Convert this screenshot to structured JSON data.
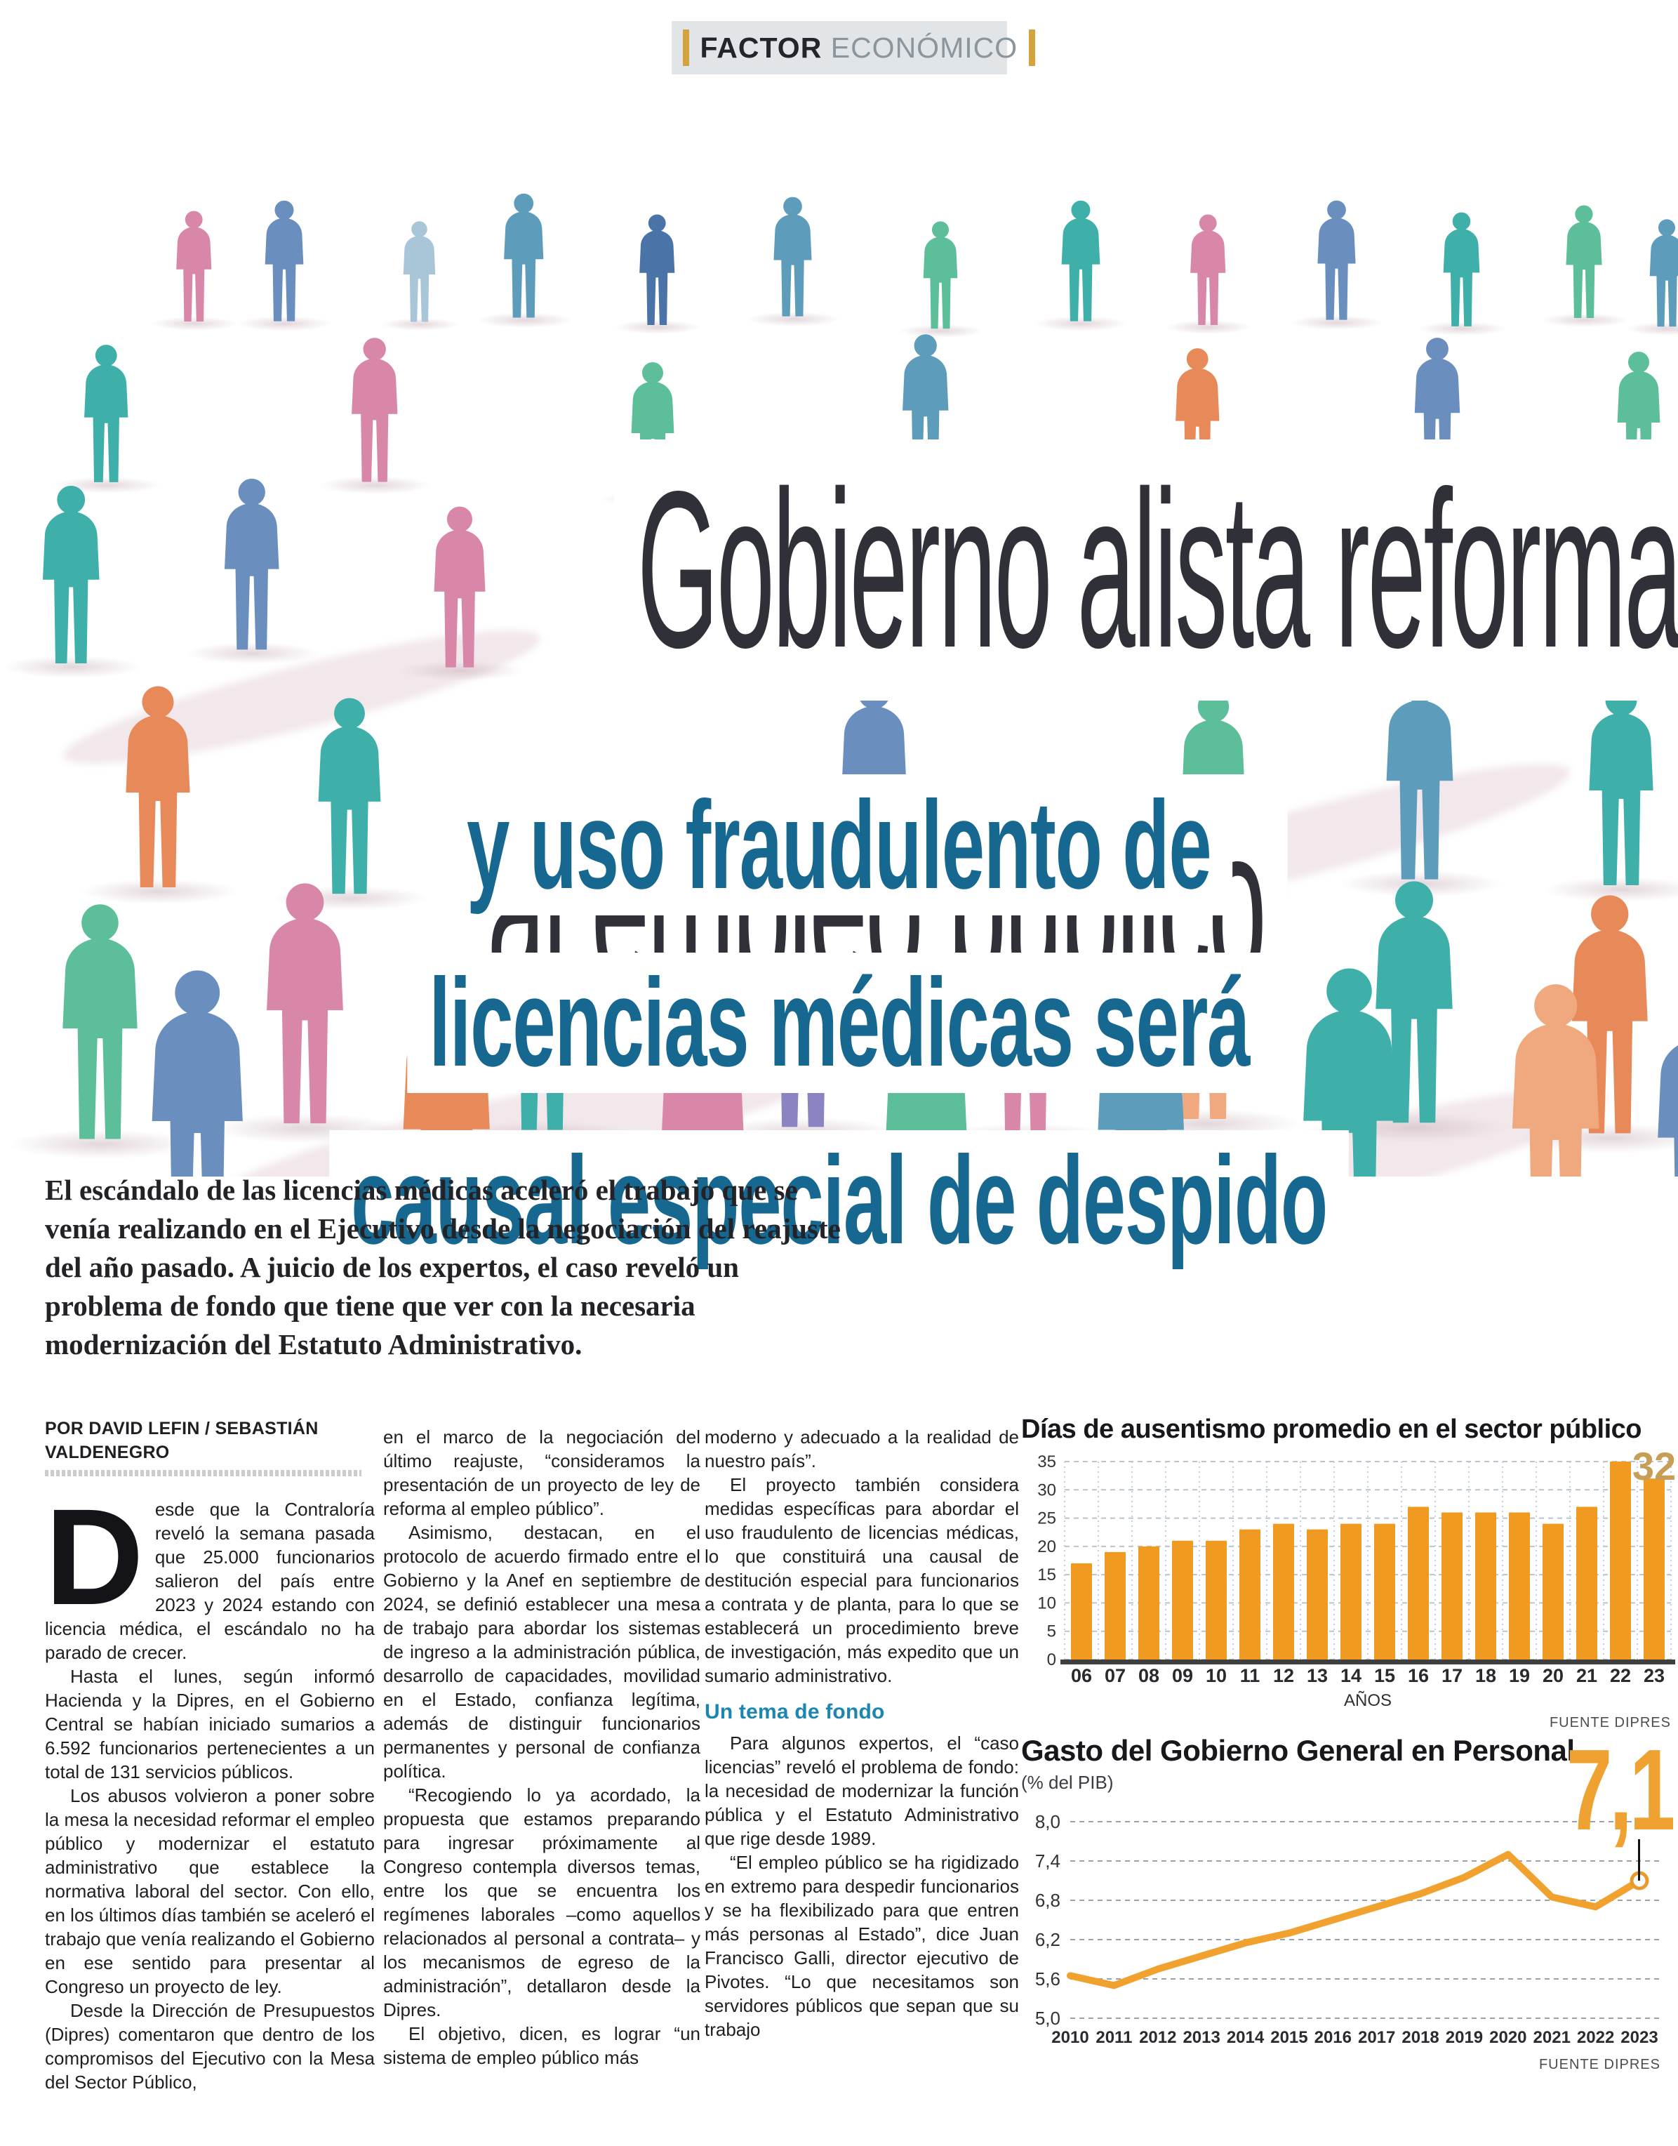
{
  "kicker": {
    "bold": "FACTOR",
    "light": "ECONÓMICO"
  },
  "headline": {
    "line1": "Gobierno alista reforma",
    "line2": "al empleo público"
  },
  "subheadline": {
    "line1": "y uso fraudulento de",
    "line2": "licencias médicas será",
    "line3": "causal especial de despido"
  },
  "lede": "El escándalo de las licencias médicas aceleró el trabajo que se venía realizando en el Ejecutivo desde la negociación del reajuste del año pasado. A juicio de los expertos, el caso reveló un problema de fondo que tiene que ver con la necesaria modernización del Estatuto Administrativo.",
  "byline": "POR DAVID LEFIN / SEBASTIÁN VALDENEGRO",
  "article": {
    "col1": {
      "dropcap": "D",
      "p1": "esde que la Contraloría reveló la semana pasada que 25.000 funcionarios salieron del país entre 2023 y 2024 estando con licencia médica, el escándalo no ha parado de crecer.",
      "p2": "Hasta el lunes, según informó Hacienda y la Dipres, en el Gobierno Central se habían iniciado sumarios a 6.592 funcionarios pertenecientes a un total de 131 servicios públicos.",
      "p3": "Los abusos volvieron a poner sobre la mesa la necesidad reformar el empleo público y modernizar el estatuto administrativo que establece la normativa laboral del sector. Con ello, en los últimos días también se aceleró el trabajo que venía realizando el Gobierno en ese sentido para presentar al Congreso un proyecto de ley.",
      "p4": "Desde la Dirección de Presupuestos (Dipres) comentaron que dentro de los compromisos del Ejecutivo con la Mesa del Sector Público,"
    },
    "col2": {
      "p1": "en el marco de la negociación del último reajuste, “consideramos la presentación de un proyecto de ley de reforma al empleo público”.",
      "p2": "Asimismo, destacan, en el protocolo de acuerdo firmado entre el Gobierno y la Anef en septiembre de 2024, se definió establecer una mesa de trabajo para abordar los sistemas de ingreso a la administración pública, desarrollo de capacidades, movilidad en el Estado, confianza legítima, además de distinguir funcionarios permanentes y personal de confianza política.",
      "p3": "“Recogiendo lo ya acordado, la propuesta que estamos preparando para ingresar próximamente al Congreso contempla diversos temas, entre los que se encuentra los regímenes laborales –como aquellos relacionados al personal a contrata– y los mecanismos de egreso de la administración”, detallaron desde la Dipres.",
      "p4": "El objetivo, dicen, es lograr “un sistema de empleo público más"
    },
    "col3": {
      "p1": "moderno y adecuado a la realidad de nuestro país”.",
      "p2": "El proyecto también considera medidas específicas para abordar el uso fraudulento de licencias médicas, lo que constituirá una causal de destitución especial para funcionarios a contrata y de planta, para lo que se establecerá un procedimiento breve de investigación, más expedito que un sumario administrativo.",
      "subhead": "Un tema de fondo",
      "p3": "Para algunos expertos, el “caso licencias” reveló el problema de fondo: la necesidad de modernizar la función pública y el Estatuto Administrativo que rige desde 1989.",
      "p4": "“El empleo público se ha rigidizado en extremo para despedir funcionarios y se ha flexibilizado para que entren más personas al Estado”, dice Juan Francisco Galli, director ejecutivo de Pivotes. “Lo que necesitamos son servidores públicos que sepan que su trabajo"
    }
  },
  "chart_data": [
    {
      "type": "bar",
      "title": "Días de ausentismo promedio en el sector público",
      "categories": [
        "06",
        "07",
        "08",
        "09",
        "10",
        "11",
        "12",
        "13",
        "14",
        "15",
        "16",
        "17",
        "18",
        "19",
        "20",
        "21",
        "22",
        "23"
      ],
      "values": [
        17,
        19,
        20,
        21,
        21,
        23,
        24,
        23,
        24,
        24,
        27,
        26,
        26,
        26,
        24,
        27,
        35,
        32
      ],
      "xlabel": "AÑOS",
      "ylabel": "",
      "ylim": [
        0,
        35
      ],
      "yticks": [
        0,
        5,
        10,
        15,
        20,
        25,
        30,
        35
      ],
      "grid": "on",
      "bar_color": "#f09a22",
      "highlight_value_label": "32",
      "highlight_label_color": "#c69e55",
      "source": "FUENTE DIPRES"
    },
    {
      "type": "line",
      "title": "Gasto del Gobierno General en Personal",
      "subtitle": "(% del PIB)",
      "x": [
        "2010",
        "2011",
        "2012",
        "2013",
        "2014",
        "2015",
        "2016",
        "2017",
        "2018",
        "2019",
        "2020",
        "2021",
        "2022",
        "2023"
      ],
      "values": [
        5.65,
        5.5,
        5.75,
        5.95,
        6.15,
        6.3,
        6.5,
        6.7,
        6.9,
        7.15,
        7.5,
        6.85,
        6.7,
        7.1
      ],
      "ylim": [
        5.0,
        8.0
      ],
      "yticks": [
        8.0,
        7.4,
        6.8,
        6.2,
        5.6,
        5.0
      ],
      "ytick_labels": [
        "8,0",
        "7,4",
        "6,8",
        "6,2",
        "5,6",
        "5,0"
      ],
      "grid": "on",
      "line_color": "#f0a12e",
      "annotation": "7,1",
      "annotation_color": "#efa231",
      "source": "FUENTE DIPRES"
    }
  ],
  "illustration": {
    "palette": [
      "#6a8fbe",
      "#5d9dbb",
      "#3fafa9",
      "#2f9a95",
      "#d887a9",
      "#c96f9c",
      "#5cbf9a",
      "#7fc7b0",
      "#e8895a",
      "#f0a97e",
      "#8b84c2",
      "#4a74a8",
      "#e2738a",
      "#a9c6d8",
      "#f2b9c6"
    ]
  }
}
